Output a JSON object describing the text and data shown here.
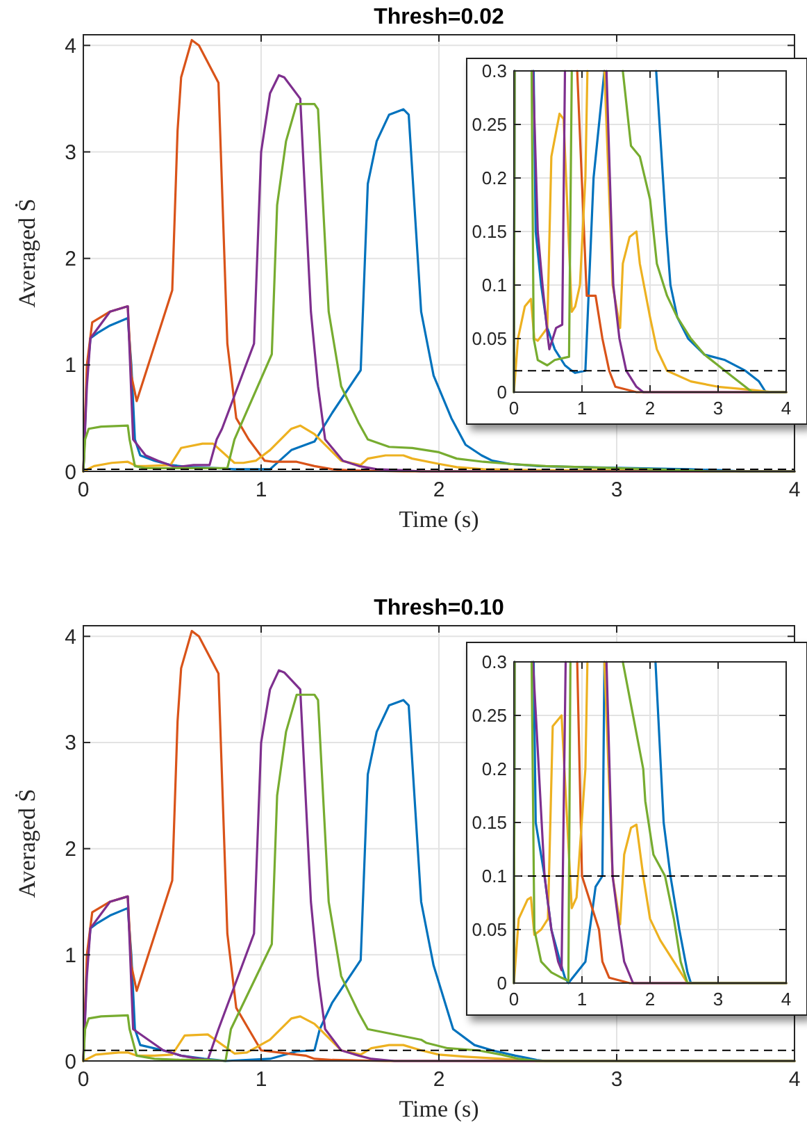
{
  "chart_data": [
    {
      "type": "line",
      "title": "Thresh=0.02",
      "xlabel": "Time (s)",
      "ylabel": "Averaged Ṡ",
      "xlim": [
        0,
        4
      ],
      "ylim": [
        0,
        4.1
      ],
      "xticks": [
        0,
        1,
        2,
        3,
        4
      ],
      "yticks": [
        0,
        1,
        2,
        3,
        4
      ],
      "grid": true,
      "ref_lines": [
        {
          "axis": "y",
          "value": 0.02,
          "color": "#000000",
          "line_style": "dashed"
        }
      ],
      "series": [
        {
          "color": "#0072bd",
          "x": [
            0,
            0.02,
            0.04,
            0.08,
            0.15,
            0.25,
            0.27,
            0.29,
            0.32,
            0.4,
            0.49,
            0.6,
            0.75,
            0.85,
            0.9,
            1.05,
            1.07,
            1.17,
            1.3,
            1.4,
            1.56,
            1.6,
            1.65,
            1.72,
            1.8,
            1.83,
            1.9,
            1.97,
            2.07,
            2.15,
            2.24,
            2.3,
            2.4,
            2.56,
            2.8,
            3.1,
            3.4,
            3.6,
            3.7,
            4
          ],
          "values": [
            0,
            0.9,
            1.25,
            1.3,
            1.37,
            1.44,
            1.0,
            0.3,
            0.15,
            0.1,
            0.06,
            0.04,
            0.03,
            0.02,
            0.02,
            0.02,
            0.05,
            0.2,
            0.28,
            0.55,
            0.95,
            2.7,
            3.1,
            3.35,
            3.4,
            3.35,
            1.5,
            0.9,
            0.5,
            0.25,
            0.15,
            0.1,
            0.07,
            0.05,
            0.04,
            0.03,
            0.02,
            0.01,
            0,
            0
          ]
        },
        {
          "color": "#d95319",
          "x": [
            0,
            0.02,
            0.05,
            0.15,
            0.25,
            0.27,
            0.3,
            0.5,
            0.53,
            0.55,
            0.61,
            0.65,
            0.76,
            0.81,
            0.86,
            0.93,
            1.02,
            1.07,
            1.2,
            1.3,
            1.4,
            1.49,
            1.8,
            4
          ],
          "values": [
            0,
            1.0,
            1.4,
            1.5,
            1.55,
            0.9,
            0.66,
            1.7,
            3.2,
            3.7,
            4.05,
            4.0,
            3.65,
            1.2,
            0.5,
            0.3,
            0.1,
            0.09,
            0.09,
            0.05,
            0.02,
            0.01,
            0,
            0
          ]
        },
        {
          "color": "#edb120",
          "x": [
            0,
            0.06,
            0.16,
            0.25,
            0.3,
            0.35,
            0.49,
            0.55,
            0.67,
            0.73,
            0.85,
            0.9,
            0.97,
            1.05,
            1.17,
            1.22,
            1.3,
            1.33,
            1.45,
            1.56,
            1.6,
            1.7,
            1.8,
            1.85,
            2.0,
            2.1,
            2.25,
            2.6,
            3.0,
            3.5
          ],
          "values": [
            0,
            0.05,
            0.08,
            0.09,
            0.05,
            0.05,
            0.06,
            0.22,
            0.26,
            0.26,
            0.08,
            0.08,
            0.1,
            0.2,
            0.4,
            0.43,
            0.35,
            0.3,
            0.1,
            0.06,
            0.12,
            0.15,
            0.15,
            0.12,
            0.07,
            0.04,
            0.02,
            0.01,
            0.01,
            0
          ]
        },
        {
          "color": "#7e2f8e",
          "x": [
            0,
            0.02,
            0.04,
            0.15,
            0.25,
            0.28,
            0.35,
            0.42,
            0.5,
            0.52,
            0.62,
            0.71,
            0.75,
            0.78,
            0.96,
            1.0,
            1.05,
            1.1,
            1.13,
            1.22,
            1.28,
            1.32,
            1.36,
            1.46,
            1.55,
            1.65,
            1.8,
            1.9,
            4
          ],
          "values": [
            0,
            0.8,
            1.25,
            1.5,
            1.55,
            0.3,
            0.15,
            0.1,
            0.05,
            0.04,
            0.06,
            0.06,
            0.3,
            0.4,
            1.2,
            3.0,
            3.55,
            3.72,
            3.7,
            3.5,
            1.5,
            0.8,
            0.3,
            0.1,
            0.05,
            0.02,
            0.01,
            0,
            0
          ]
        },
        {
          "color": "#77ac30",
          "x": [
            0,
            0.01,
            0.03,
            0.1,
            0.25,
            0.26,
            0.29,
            0.35,
            0.49,
            0.6,
            0.81,
            0.85,
            1.06,
            1.09,
            1.14,
            1.2,
            1.3,
            1.32,
            1.38,
            1.45,
            1.55,
            1.6,
            1.72,
            1.85,
            2.0,
            2.1,
            2.25,
            2.4,
            2.6,
            2.8,
            3.0,
            3.2,
            3.4,
            3.5,
            4
          ],
          "values": [
            0,
            0.3,
            0.4,
            0.42,
            0.43,
            0.3,
            0.05,
            0.03,
            0.03,
            0.03,
            0.03,
            0.3,
            1.1,
            2.5,
            3.1,
            3.45,
            3.45,
            3.4,
            1.5,
            0.8,
            0.45,
            0.3,
            0.23,
            0.22,
            0.18,
            0.12,
            0.09,
            0.07,
            0.05,
            0.04,
            0.03,
            0.02,
            0.01,
            0,
            0
          ]
        }
      ]
    },
    {
      "type": "line",
      "xlim": [
        0,
        4
      ],
      "ylim": [
        0,
        0.3
      ],
      "xticks": [
        0,
        1,
        2,
        3,
        4
      ],
      "yticks": [
        0,
        0.05,
        0.1,
        0.15,
        0.2,
        0.25,
        0.3
      ],
      "grid": true,
      "ref_lines": [
        {
          "axis": "y",
          "value": 0.02,
          "color": "#000000",
          "line_style": "dashed"
        }
      ],
      "series": [
        {
          "color": "#0072bd",
          "x": [
            0,
            0.01,
            0.15,
            0.29,
            0.32,
            0.4,
            0.49,
            0.6,
            0.75,
            0.85,
            0.9,
            1.05,
            1.07,
            1.17,
            1.33,
            1.7,
            2.09,
            2.24,
            2.3,
            2.4,
            2.56,
            2.8,
            3.1,
            3.4,
            3.6,
            3.7,
            4
          ],
          "values": [
            0,
            0.3,
            null,
            0.3,
            0.15,
            0.1,
            0.06,
            0.04,
            0.025,
            0.02,
            0.018,
            0.02,
            0.05,
            0.2,
            0.3,
            null,
            0.3,
            0.15,
            0.1,
            0.07,
            0.05,
            0.035,
            0.03,
            0.02,
            0.01,
            0,
            0
          ]
        },
        {
          "color": "#d95319",
          "x": [
            0.93,
            1.07,
            1.2,
            1.3,
            1.4,
            1.49,
            1.8,
            4
          ],
          "values": [
            0.3,
            0.09,
            0.09,
            0.05,
            0.02,
            0.005,
            0,
            0
          ]
        },
        {
          "color": "#edb120",
          "x": [
            0,
            0.06,
            0.16,
            0.25,
            0.3,
            0.35,
            0.49,
            0.55,
            0.67,
            0.73,
            0.85,
            0.9,
            0.97,
            1.05,
            1.08,
            1.2,
            1.33,
            1.45,
            1.56,
            1.6,
            1.7,
            1.8,
            1.85,
            2.0,
            2.1,
            2.25,
            2.6,
            3.0,
            3.5,
            3.8,
            4
          ],
          "values": [
            0,
            0.05,
            0.08,
            0.087,
            0.05,
            0.048,
            0.06,
            0.22,
            0.26,
            0.255,
            0.075,
            0.08,
            0.1,
            0.2,
            0.3,
            null,
            0.3,
            0.1,
            0.06,
            0.12,
            0.145,
            0.15,
            0.12,
            0.07,
            0.04,
            0.02,
            0.01,
            0.005,
            0.002,
            0,
            0
          ]
        },
        {
          "color": "#7e2f8e",
          "x": [
            0,
            0.01,
            0.15,
            0.28,
            0.35,
            0.42,
            0.5,
            0.52,
            0.62,
            0.71,
            0.75,
            1.0,
            1.36,
            1.46,
            1.55,
            1.65,
            1.8,
            1.9,
            4
          ],
          "values": [
            0,
            0.3,
            null,
            0.3,
            0.15,
            0.1,
            0.05,
            0.04,
            0.06,
            0.063,
            0.3,
            null,
            0.3,
            0.1,
            0.05,
            0.02,
            0.005,
            0,
            0
          ]
        },
        {
          "color": "#77ac30",
          "x": [
            0,
            0.01,
            0.1,
            0.26,
            0.29,
            0.35,
            0.49,
            0.6,
            0.81,
            0.85,
            1.2,
            1.6,
            1.72,
            1.85,
            2.0,
            2.1,
            2.25,
            2.4,
            2.6,
            2.8,
            3.0,
            3.2,
            3.4,
            3.5,
            4
          ],
          "values": [
            0,
            0.3,
            null,
            0.3,
            0.05,
            0.03,
            0.025,
            0.03,
            0.033,
            0.3,
            null,
            0.3,
            0.23,
            0.22,
            0.18,
            0.12,
            0.09,
            0.07,
            0.05,
            0.035,
            0.025,
            0.015,
            0.005,
            0,
            0
          ]
        }
      ]
    },
    {
      "type": "line",
      "title": "Thresh=0.10",
      "xlabel": "Time (s)",
      "ylabel": "Averaged Ṡ",
      "xlim": [
        0,
        4
      ],
      "ylim": [
        0,
        4.1
      ],
      "xticks": [
        0,
        1,
        2,
        3,
        4
      ],
      "yticks": [
        0,
        1,
        2,
        3,
        4
      ],
      "grid": true,
      "ref_lines": [
        {
          "axis": "y",
          "value": 0.1,
          "color": "#000000",
          "line_style": "dashed"
        }
      ],
      "series": [
        {
          "color": "#0072bd",
          "x": [
            0,
            0.02,
            0.04,
            0.08,
            0.15,
            0.25,
            0.27,
            0.29,
            0.32,
            0.45,
            0.55,
            0.68,
            0.75,
            0.8,
            1.05,
            1.2,
            1.3,
            1.33,
            1.4,
            1.56,
            1.6,
            1.65,
            1.72,
            1.8,
            1.83,
            1.9,
            1.97,
            2.08,
            2.2,
            2.3,
            2.43,
            2.55,
            2.6,
            4
          ],
          "values": [
            0,
            0.9,
            1.25,
            1.3,
            1.37,
            1.44,
            1.0,
            0.3,
            0.15,
            0.1,
            0.05,
            0.02,
            0.01,
            0,
            0.02,
            0.09,
            0.1,
            0.3,
            0.55,
            0.95,
            2.7,
            3.1,
            3.35,
            3.4,
            3.35,
            1.5,
            0.9,
            0.3,
            0.15,
            0.1,
            0.05,
            0.01,
            0,
            0
          ]
        },
        {
          "color": "#d95319",
          "x": [
            0,
            0.02,
            0.05,
            0.15,
            0.25,
            0.27,
            0.3,
            0.5,
            0.53,
            0.55,
            0.61,
            0.65,
            0.76,
            0.81,
            0.86,
            0.93,
            1.0,
            1.15,
            1.25,
            1.3,
            1.4,
            1.7,
            4
          ],
          "values": [
            0,
            1.0,
            1.4,
            1.5,
            1.55,
            0.9,
            0.66,
            1.7,
            3.2,
            3.7,
            4.05,
            4.0,
            3.65,
            1.2,
            0.5,
            0.3,
            0.1,
            0.07,
            0.05,
            0.02,
            0.01,
            0,
            0
          ]
        },
        {
          "color": "#edb120",
          "x": [
            0,
            0.07,
            0.2,
            0.25,
            0.3,
            0.4,
            0.5,
            0.57,
            0.7,
            0.85,
            0.92,
            1.05,
            1.17,
            1.22,
            1.3,
            1.33,
            1.45,
            1.56,
            1.62,
            1.72,
            1.8,
            1.9,
            2.0,
            2.15,
            2.35,
            2.45,
            2.55,
            4
          ],
          "values": [
            0,
            0.06,
            0.08,
            0.08,
            0.05,
            0.05,
            0.06,
            0.24,
            0.25,
            0.07,
            0.08,
            0.2,
            0.4,
            0.42,
            0.35,
            0.3,
            0.1,
            0.06,
            0.12,
            0.15,
            0.15,
            0.1,
            0.06,
            0.04,
            0.02,
            0.01,
            0,
            0
          ]
        },
        {
          "color": "#7e2f8e",
          "x": [
            0,
            0.02,
            0.04,
            0.15,
            0.25,
            0.28,
            0.45,
            0.55,
            0.65,
            0.7,
            0.76,
            0.96,
            1.0,
            1.05,
            1.1,
            1.13,
            1.22,
            1.28,
            1.32,
            1.36,
            1.45,
            1.55,
            1.62,
            1.75,
            4
          ],
          "values": [
            0,
            0.8,
            1.25,
            1.5,
            1.55,
            0.3,
            0.1,
            0.05,
            0.02,
            0.01,
            0.3,
            1.2,
            3.0,
            3.5,
            3.68,
            3.66,
            3.5,
            1.5,
            0.8,
            0.3,
            0.1,
            0.05,
            0.02,
            0,
            0
          ]
        },
        {
          "color": "#77ac30",
          "x": [
            0,
            0.01,
            0.03,
            0.1,
            0.25,
            0.26,
            0.3,
            0.4,
            0.55,
            0.7,
            0.8,
            0.83,
            1.06,
            1.09,
            1.14,
            1.2,
            1.3,
            1.32,
            1.38,
            1.45,
            1.55,
            1.6,
            1.9,
            1.93,
            2.05,
            2.22,
            2.35,
            2.45,
            2.55,
            4
          ],
          "values": [
            0,
            0.3,
            0.4,
            0.42,
            0.43,
            0.3,
            0.05,
            0.02,
            0.01,
            0.01,
            0,
            0.3,
            1.1,
            2.5,
            3.1,
            3.45,
            3.45,
            3.4,
            1.5,
            0.8,
            0.45,
            0.3,
            0.2,
            0.17,
            0.12,
            0.1,
            0.06,
            0.02,
            0,
            0
          ]
        }
      ]
    },
    {
      "type": "line",
      "xlim": [
        0,
        4
      ],
      "ylim": [
        0,
        0.3
      ],
      "xticks": [
        0,
        1,
        2,
        3,
        4
      ],
      "yticks": [
        0,
        0.05,
        0.1,
        0.15,
        0.2,
        0.25,
        0.3
      ],
      "grid": true,
      "ref_lines": [
        {
          "axis": "y",
          "value": 0.1,
          "color": "#000000",
          "line_style": "dashed"
        }
      ],
      "series": [
        {
          "color": "#0072bd",
          "x": [
            0,
            0.01,
            0.15,
            0.29,
            0.32,
            0.45,
            0.55,
            0.68,
            0.75,
            0.8,
            1.05,
            1.2,
            1.3,
            1.33,
            1.7,
            2.08,
            2.2,
            2.3,
            2.43,
            2.55,
            2.6,
            4
          ],
          "values": [
            0,
            0.3,
            null,
            0.3,
            0.15,
            0.1,
            0.05,
            0.02,
            0.005,
            0,
            0.02,
            0.09,
            0.1,
            0.3,
            null,
            0.3,
            0.15,
            0.1,
            0.05,
            0.01,
            0,
            0
          ]
        },
        {
          "color": "#d95319",
          "x": [
            0.93,
            1.0,
            1.15,
            1.25,
            1.3,
            1.4,
            1.7,
            4
          ],
          "values": [
            0.3,
            0.1,
            0.07,
            0.05,
            0.02,
            0.005,
            0,
            0
          ]
        },
        {
          "color": "#edb120",
          "x": [
            0,
            0.07,
            0.2,
            0.25,
            0.3,
            0.4,
            0.5,
            0.57,
            0.7,
            0.85,
            0.92,
            1.05,
            1.08,
            1.2,
            1.33,
            1.45,
            1.56,
            1.62,
            1.72,
            1.8,
            1.9,
            2.0,
            2.15,
            2.35,
            2.45,
            2.55,
            4
          ],
          "values": [
            0,
            0.06,
            0.078,
            0.08,
            0.045,
            0.05,
            0.06,
            0.24,
            0.25,
            0.07,
            0.08,
            0.2,
            0.3,
            null,
            0.3,
            0.1,
            0.055,
            0.12,
            0.145,
            0.148,
            0.1,
            0.06,
            0.04,
            0.02,
            0.01,
            0,
            0
          ]
        },
        {
          "color": "#7e2f8e",
          "x": [
            0,
            0.01,
            0.15,
            0.28,
            0.45,
            0.55,
            0.65,
            0.7,
            0.76,
            1.0,
            1.36,
            1.45,
            1.55,
            1.62,
            1.75,
            4
          ],
          "values": [
            0,
            0.3,
            null,
            0.3,
            0.1,
            0.05,
            0.02,
            0.012,
            0.3,
            null,
            0.3,
            0.1,
            0.05,
            0.02,
            0,
            0
          ]
        },
        {
          "color": "#77ac30",
          "x": [
            0,
            0.01,
            0.1,
            0.26,
            0.3,
            0.4,
            0.55,
            0.7,
            0.8,
            0.83,
            1.2,
            1.6,
            1.9,
            1.93,
            2.05,
            2.22,
            2.35,
            2.45,
            2.55,
            4
          ],
          "values": [
            0,
            0.3,
            null,
            0.3,
            0.05,
            0.02,
            0.01,
            0.005,
            0.002,
            0.3,
            null,
            0.3,
            0.2,
            0.17,
            0.12,
            0.1,
            0.06,
            0.02,
            0,
            0
          ]
        }
      ]
    }
  ]
}
